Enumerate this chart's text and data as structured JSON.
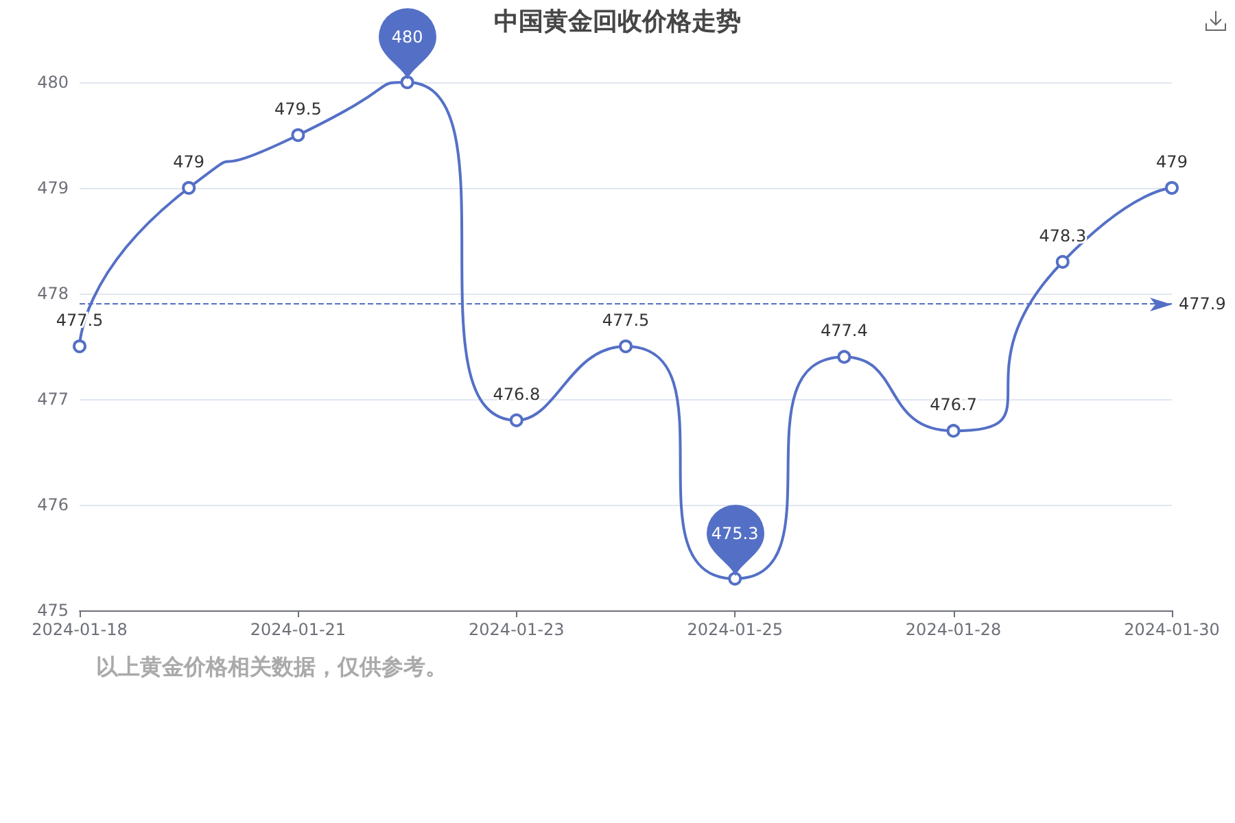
{
  "chart_data": {
    "type": "line",
    "title": "中国黄金回收价格走势",
    "categories": [
      "2024-01-18",
      null,
      "2024-01-21",
      null,
      "2024-01-23",
      null,
      "2024-01-25",
      null,
      "2024-01-28",
      null,
      "2024-01-30"
    ],
    "values": [
      477.5,
      479,
      479.5,
      480,
      476.8,
      477.5,
      475.3,
      477.4,
      476.7,
      478.3,
      479
    ],
    "color": "#5470c6",
    "value_labels": [
      "477.5",
      "479",
      "479.5",
      null,
      "476.8",
      "477.5",
      null,
      "477.4",
      "476.7",
      "478.3",
      "479"
    ],
    "ylim": [
      475,
      480
    ],
    "yticks": [
      475,
      476,
      477,
      478,
      479,
      480
    ],
    "grid": "y",
    "marker": "circle",
    "line_style": "solid",
    "ref_lines": [
      {
        "axis": "y",
        "value": 477.9,
        "label": "477.9",
        "color": "#5470c6",
        "line_style": "dashed"
      }
    ],
    "annotations": [
      "以上黄金价格相关数据，仅供参考。",
      {
        "text": "480",
        "y": 480
      },
      {
        "text": "475.3",
        "x": "2024-01-25",
        "y": 475.3
      }
    ]
  }
}
